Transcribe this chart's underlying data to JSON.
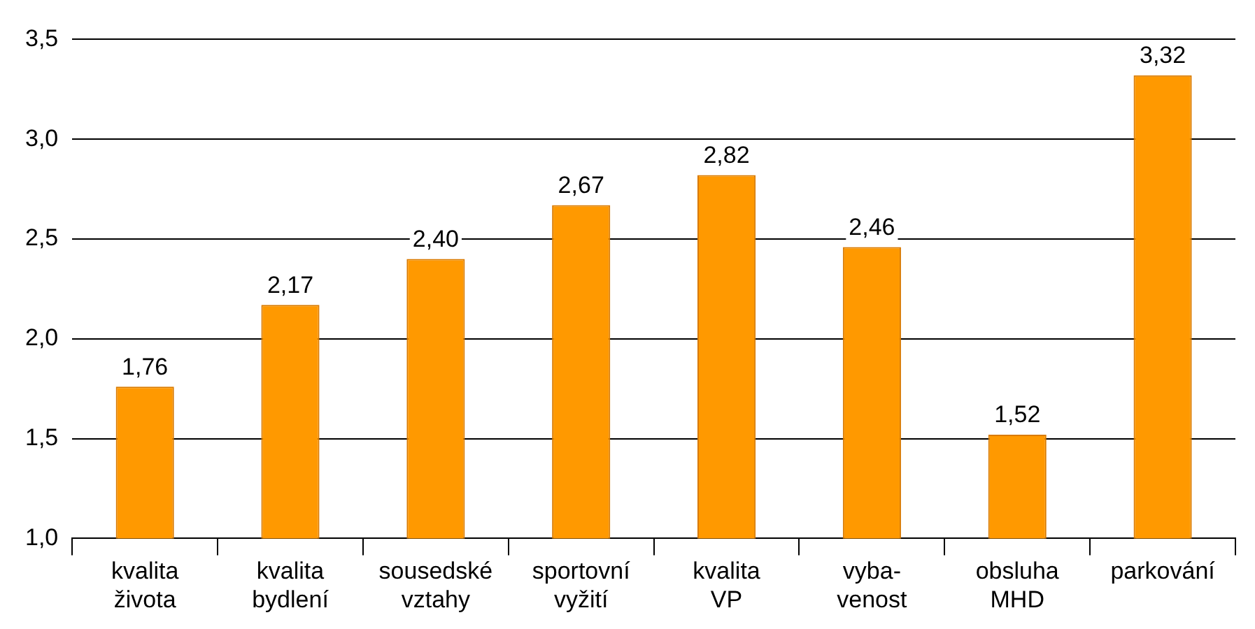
{
  "chart_data": {
    "type": "bar",
    "categories": [
      "kvalita\nživota",
      "kvalita\nbydlení",
      "sousedské\nvztahy",
      "sportovní\nvyžití",
      "kvalita\nVP",
      "vyba-\nvenost",
      "obsluha\nMHD",
      "parkování"
    ],
    "values": [
      1.76,
      2.17,
      2.4,
      2.67,
      2.82,
      2.46,
      1.52,
      3.32
    ],
    "value_labels": [
      "1,76",
      "2,17",
      "2,40",
      "2,67",
      "2,82",
      "2,46",
      "1,52",
      "3,32"
    ],
    "color": "#ff9900",
    "ylim": [
      1,
      3.5
    ],
    "yticks": [
      {
        "value": 1,
        "label": "1,0"
      },
      {
        "value": 1.5,
        "label": "1,5"
      },
      {
        "value": 2,
        "label": "2,0"
      },
      {
        "value": 2.5,
        "label": "2,5"
      },
      {
        "value": 3,
        "label": "3,0"
      },
      {
        "value": 3.5,
        "label": "3,5"
      }
    ],
    "grid": "y",
    "legend": false
  }
}
